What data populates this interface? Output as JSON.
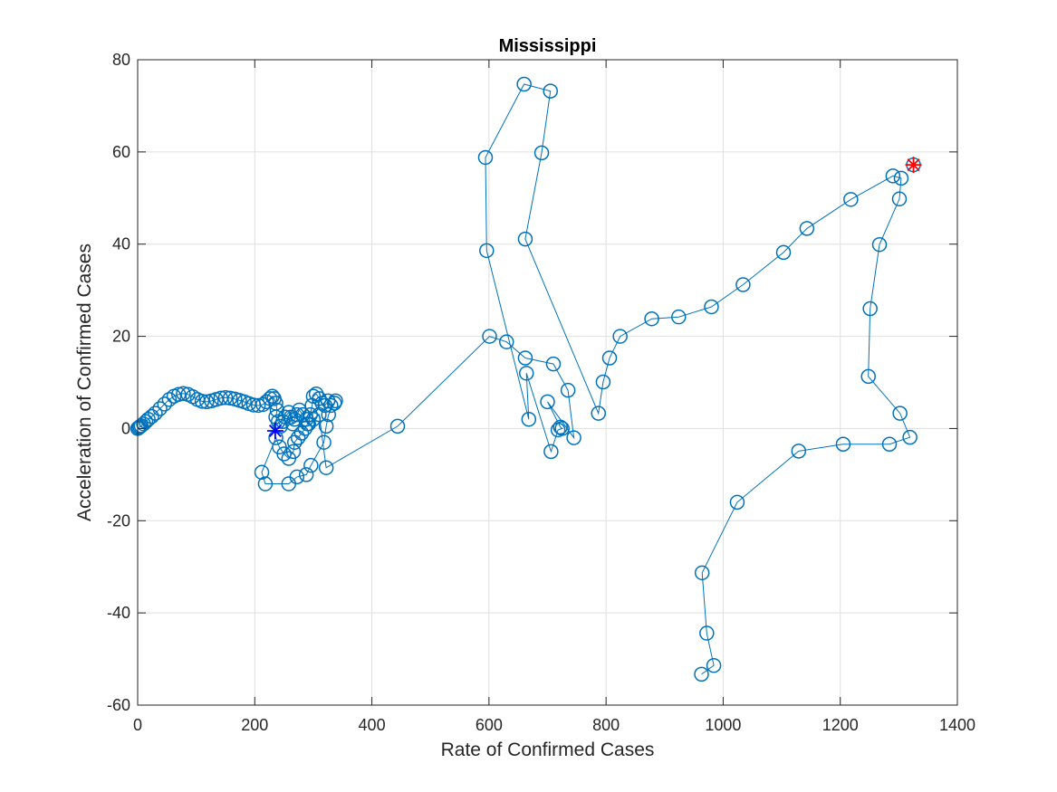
{
  "chart_data": {
    "type": "line",
    "title": "Mississippi",
    "xlabel": "Rate of Confirmed Cases",
    "ylabel": "Acceleration of Confirmed Cases",
    "xlim": [
      0,
      1400
    ],
    "ylim": [
      -60,
      80
    ],
    "xticks": [
      0,
      200,
      400,
      600,
      800,
      1000,
      1200,
      1400
    ],
    "xtick_labels": [
      "0",
      "200",
      "400",
      "600",
      "800",
      "1000",
      "1200",
      "1400"
    ],
    "yticks": [
      -60,
      -40,
      -20,
      0,
      20,
      40,
      60,
      80
    ],
    "ytick_labels": [
      "-60",
      "-40",
      "-20",
      "0",
      "20",
      "40",
      "60",
      "80"
    ],
    "grid": true,
    "series": [
      {
        "marker": "circle",
        "color": "#0072BD",
        "points": [
          [
            0,
            0
          ],
          [
            2,
            0.2
          ],
          [
            4,
            0.4
          ],
          [
            6,
            0.6
          ],
          [
            10,
            1
          ],
          [
            14,
            1.5
          ],
          [
            18,
            2
          ],
          [
            24,
            2.6
          ],
          [
            30,
            3.3
          ],
          [
            38,
            4.3
          ],
          [
            46,
            5.3
          ],
          [
            54,
            6.3
          ],
          [
            62,
            7
          ],
          [
            70,
            7.4
          ],
          [
            78,
            7.6
          ],
          [
            86,
            7.4
          ],
          [
            94,
            6.9
          ],
          [
            102,
            6.3
          ],
          [
            110,
            5.9
          ],
          [
            118,
            5.8
          ],
          [
            126,
            6
          ],
          [
            134,
            6.3
          ],
          [
            142,
            6.6
          ],
          [
            150,
            6.7
          ],
          [
            158,
            6.6
          ],
          [
            166,
            6.4
          ],
          [
            174,
            6.1
          ],
          [
            182,
            5.8
          ],
          [
            190,
            5.4
          ],
          [
            198,
            5.1
          ],
          [
            206,
            5
          ],
          [
            214,
            5.2
          ],
          [
            220,
            5.8
          ],
          [
            226,
            6.5
          ],
          [
            230,
            7
          ],
          [
            233,
            6.5
          ],
          [
            236,
            5.5
          ],
          [
            238,
            4
          ],
          [
            236,
            2.5
          ],
          [
            240,
            1.5
          ],
          [
            244,
            0.5
          ],
          [
            248,
            1.5
          ],
          [
            252,
            2.5
          ],
          [
            258,
            3.5
          ],
          [
            262,
            2.5
          ],
          [
            265,
            1
          ],
          [
            268,
            2
          ],
          [
            272,
            3
          ],
          [
            276,
            4
          ],
          [
            282,
            3
          ],
          [
            288,
            2
          ],
          [
            292,
            1
          ],
          [
            295,
            3
          ],
          [
            298,
            5
          ],
          [
            300,
            7
          ],
          [
            305,
            7.5
          ],
          [
            310,
            6.5
          ],
          [
            315,
            5.5
          ],
          [
            320,
            5
          ],
          [
            325,
            6
          ],
          [
            330,
            5
          ],
          [
            336,
            5.5
          ],
          [
            338,
            6
          ],
          [
            326,
            3
          ],
          [
            322,
            0.5
          ],
          [
            318,
            -3
          ],
          [
            296,
            -8
          ],
          [
            288,
            -10
          ],
          [
            272,
            -10.5
          ],
          [
            258,
            -12
          ],
          [
            218,
            -12
          ],
          [
            212,
            -9.5
          ],
          [
            236,
            -2
          ],
          [
            242,
            -4
          ],
          [
            250,
            -5.5
          ],
          [
            258,
            -6.5
          ],
          [
            266,
            -5
          ],
          [
            268,
            -3
          ],
          [
            274,
            -2
          ],
          [
            280,
            -1
          ],
          [
            286,
            0
          ],
          [
            290,
            1
          ],
          [
            300,
            2
          ],
          [
            310,
            3
          ],
          [
            322,
            -8.5
          ],
          [
            444,
            0.5
          ],
          [
            601,
            20
          ],
          [
            630,
            18.8
          ],
          [
            662,
            15.3
          ],
          [
            710,
            14
          ],
          [
            735,
            8.3
          ],
          [
            745,
            -2
          ],
          [
            700,
            5.8
          ],
          [
            722,
            0.3
          ],
          [
            725,
            0
          ],
          [
            718,
            -0.3
          ],
          [
            706,
            -5
          ],
          [
            664,
            12
          ],
          [
            668,
            2
          ],
          [
            596,
            38.6
          ],
          [
            594,
            58.8
          ],
          [
            660,
            74.7
          ],
          [
            705,
            73.2
          ],
          [
            690,
            59.8
          ],
          [
            662,
            41.1
          ],
          [
            787,
            3.3
          ],
          [
            795,
            10.1
          ],
          [
            806,
            15.3
          ],
          [
            824,
            20
          ],
          [
            878,
            23.8
          ],
          [
            924,
            24.2
          ],
          [
            980,
            26.4
          ],
          [
            1034,
            31.2
          ],
          [
            1103,
            38.2
          ],
          [
            1143,
            43.4
          ],
          [
            1218,
            49.7
          ],
          [
            1290,
            54.8
          ],
          [
            1304,
            54.3
          ],
          [
            1301,
            49.8
          ],
          [
            1267,
            39.9
          ],
          [
            1251,
            26
          ],
          [
            1248,
            11.3
          ],
          [
            1302,
            3.3
          ],
          [
            1319,
            -1.9
          ],
          [
            1284,
            -3.4
          ],
          [
            1205,
            -3.4
          ],
          [
            1129,
            -4.9
          ],
          [
            1024,
            -16
          ],
          [
            964,
            -31.3
          ],
          [
            972,
            -44.4
          ],
          [
            984,
            -51.4
          ],
          [
            963,
            -53.3
          ]
        ]
      }
    ],
    "start_marker": {
      "x": 1325,
      "y": 57.2,
      "color": "#ff0000",
      "symbol": "asterisk"
    },
    "end_marker": {
      "x": 235,
      "y": -0.5,
      "color": "#0000ff",
      "symbol": "asterisk"
    }
  }
}
